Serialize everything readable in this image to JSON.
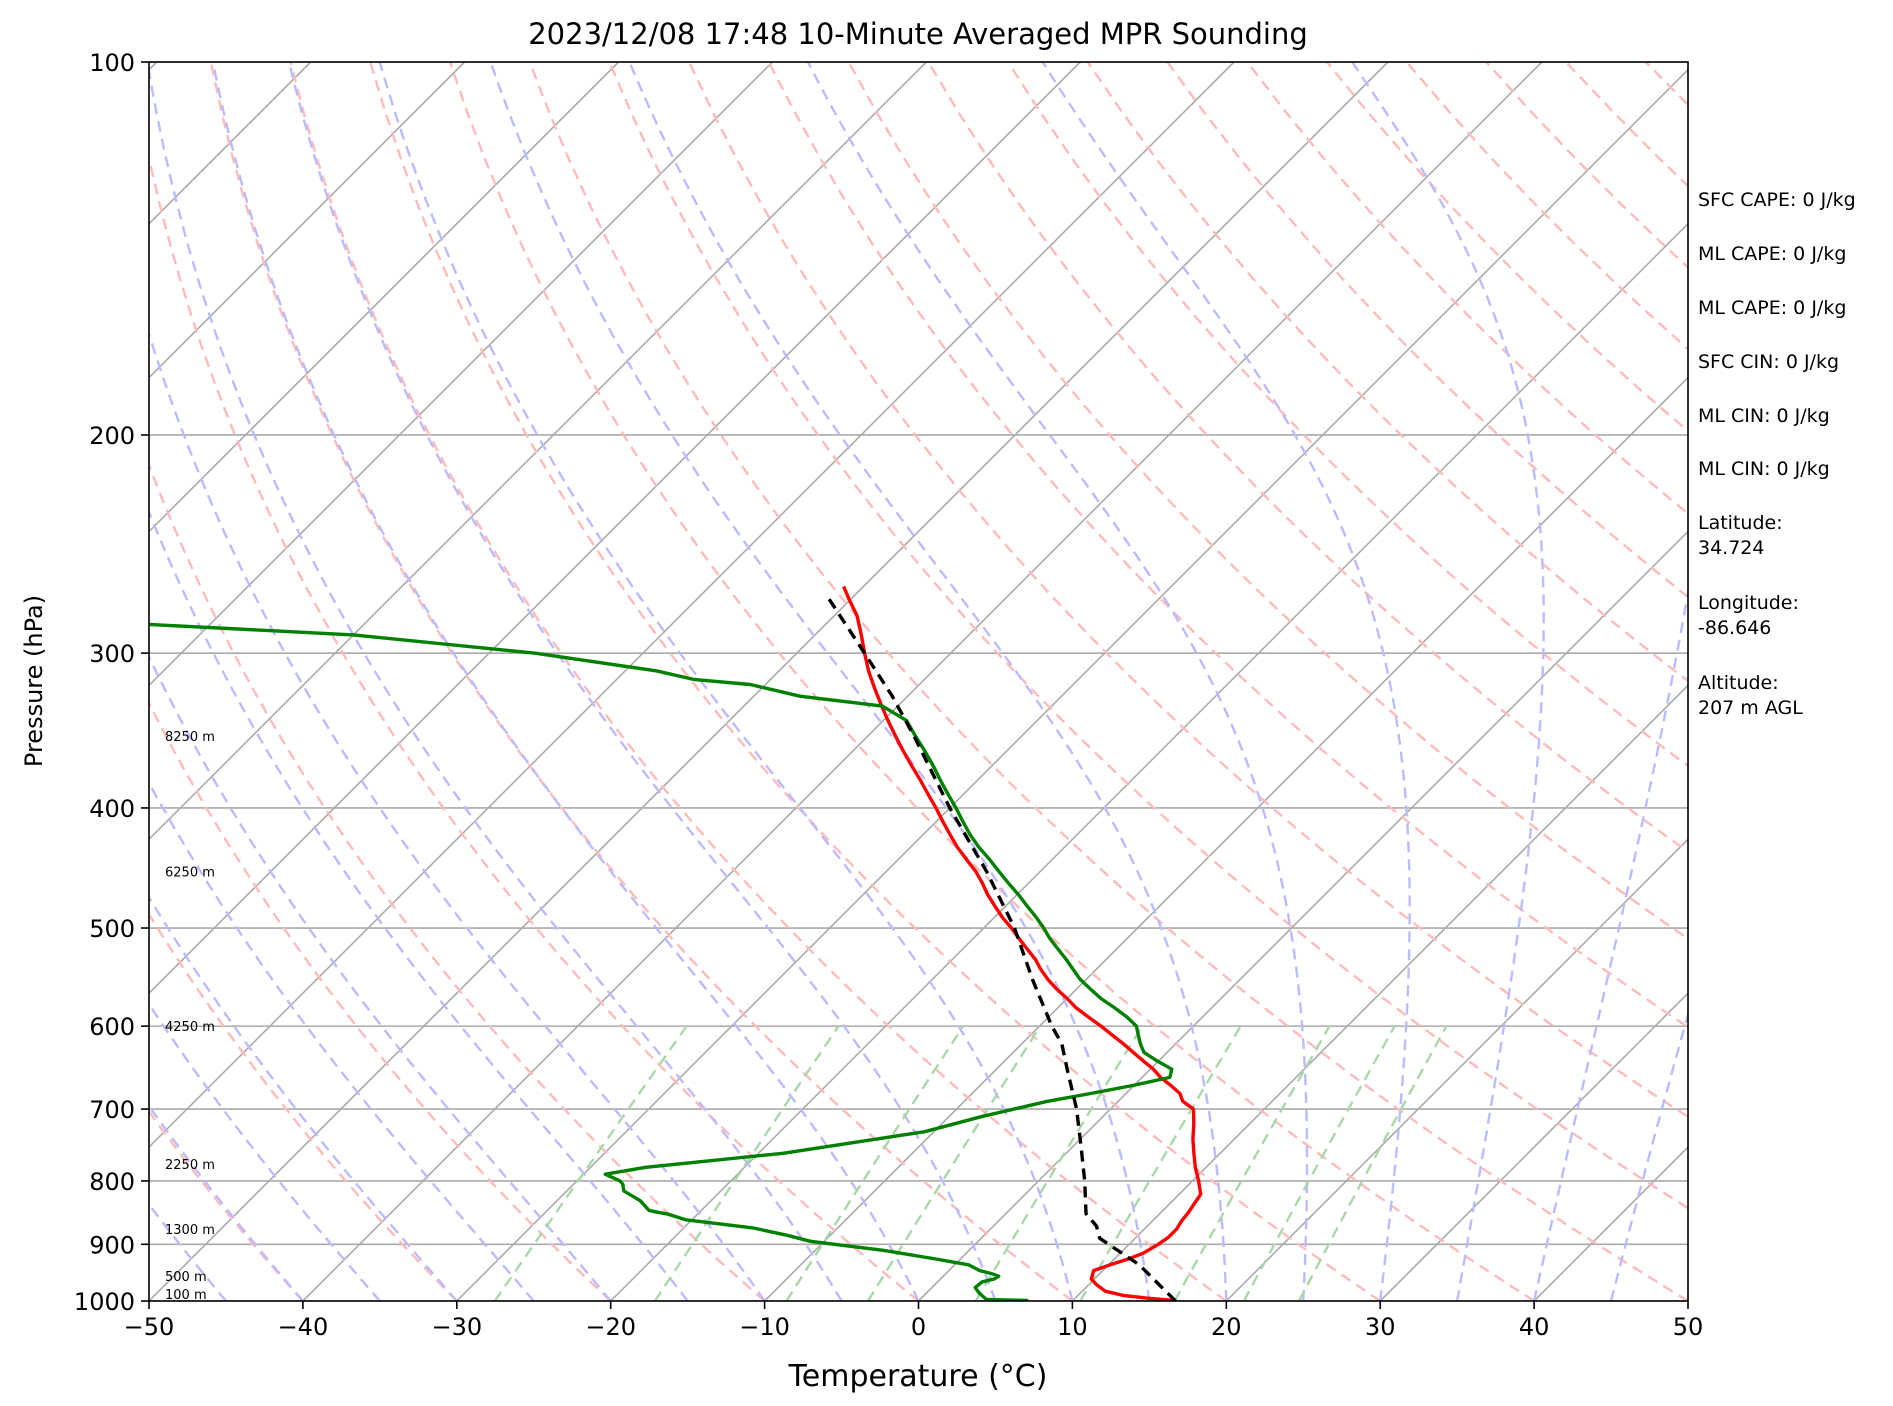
{
  "chart_data": {
    "type": "line",
    "subtype": "skew-t log-p sounding",
    "title": "2023/12/08 17:48 10-Minute Averaged MPR Sounding",
    "xlabel": "Temperature (°C)",
    "ylabel": "Pressure (hPa)",
    "xlim": [
      -50,
      50
    ],
    "ylim": [
      1000,
      100
    ],
    "y_scale": "log",
    "x_ticks": [
      -50,
      -40,
      -30,
      -20,
      -10,
      0,
      10,
      20,
      30,
      40,
      50
    ],
    "x_tick_labels": [
      "−50",
      "−40",
      "−30",
      "−20",
      "−10",
      "0",
      "10",
      "20",
      "30",
      "40",
      "50"
    ],
    "y_ticks": [
      100,
      200,
      300,
      400,
      500,
      600,
      700,
      800,
      900,
      1000
    ],
    "y_tick_labels": [
      "100",
      "200",
      "300",
      "400",
      "500",
      "600",
      "700",
      "800",
      "900",
      "1000"
    ],
    "height_labels": [
      {
        "p": 350,
        "text": "8250 m"
      },
      {
        "p": 450,
        "text": "6250 m"
      },
      {
        "p": 600,
        "text": "4250 m"
      },
      {
        "p": 775,
        "text": "2250 m"
      },
      {
        "p": 875,
        "text": "1300 m"
      },
      {
        "p": 955,
        "text": "500 m"
      },
      {
        "p": 1000,
        "text": "100 m"
      }
    ],
    "series": [
      {
        "key": "temperature",
        "color": "#ff0000",
        "style": "solid",
        "points": [
          [
            16.6,
            999
          ],
          [
            14.8,
            995
          ],
          [
            13,
            990
          ],
          [
            11.5,
            982
          ],
          [
            10.5,
            970
          ],
          [
            9.8,
            960
          ],
          [
            9.4,
            945
          ],
          [
            10.1,
            935
          ],
          [
            10.9,
            925
          ],
          [
            11.5,
            915
          ],
          [
            11.9,
            900
          ],
          [
            12.1,
            888
          ],
          [
            12.1,
            875
          ],
          [
            11.9,
            862
          ],
          [
            11.8,
            850
          ],
          [
            11.6,
            835
          ],
          [
            11.4,
            820
          ],
          [
            10.4,
            800
          ],
          [
            9.3,
            780
          ],
          [
            8.3,
            760
          ],
          [
            7.3,
            740
          ],
          [
            6.4,
            720
          ],
          [
            5.4,
            700
          ],
          [
            4.2,
            690
          ],
          [
            3.5,
            680
          ],
          [
            2.4,
            670
          ],
          [
            1.2,
            660
          ],
          [
            0.2,
            650
          ],
          [
            -1.0,
            640
          ],
          [
            -2.2,
            630
          ],
          [
            -3.4,
            620
          ],
          [
            -4.7,
            610
          ],
          [
            -6.0,
            600
          ],
          [
            -7.4,
            590
          ],
          [
            -8.8,
            580
          ],
          [
            -10.0,
            570
          ],
          [
            -11.3,
            560
          ],
          [
            -12.5,
            550
          ],
          [
            -13.6,
            540
          ],
          [
            -14.6,
            530
          ],
          [
            -15.8,
            520
          ],
          [
            -17.0,
            510
          ],
          [
            -18.2,
            500
          ],
          [
            -19.5,
            490
          ],
          [
            -20.7,
            480
          ],
          [
            -21.9,
            470
          ],
          [
            -23.0,
            460
          ],
          [
            -24.2,
            450
          ],
          [
            -25.6,
            440
          ],
          [
            -27.0,
            430
          ],
          [
            -28.3,
            420
          ],
          [
            -29.6,
            410
          ],
          [
            -30.9,
            400
          ],
          [
            -32.3,
            390
          ],
          [
            -33.7,
            380
          ],
          [
            -35.2,
            370
          ],
          [
            -36.7,
            360
          ],
          [
            -38.2,
            350
          ],
          [
            -39.7,
            340
          ],
          [
            -41.2,
            330
          ],
          [
            -42.7,
            320
          ],
          [
            -44.2,
            310
          ],
          [
            -45.6,
            300
          ],
          [
            -47.0,
            290
          ],
          [
            -48.5,
            280
          ],
          [
            -50.0,
            272
          ],
          [
            -51.3,
            265
          ]
        ]
      },
      {
        "key": "dewpoint",
        "color": "#008000",
        "style": "solid",
        "points": [
          [
            7.1,
            999
          ],
          [
            4.3,
            997
          ],
          [
            3.4,
            985
          ],
          [
            2.8,
            975
          ],
          [
            2.9,
            965
          ],
          [
            3.5,
            960
          ],
          [
            3.6,
            955
          ],
          [
            2.9,
            950
          ],
          [
            2.0,
            945
          ],
          [
            0.9,
            935
          ],
          [
            -1.6,
            925
          ],
          [
            -5.6,
            910
          ],
          [
            -10.9,
            895
          ],
          [
            -12.8,
            885
          ],
          [
            -15.5,
            873
          ],
          [
            -20.4,
            860
          ],
          [
            -21.9,
            851
          ],
          [
            -22.7,
            848
          ],
          [
            -23.4,
            845
          ],
          [
            -24.6,
            830
          ],
          [
            -26.3,
            815
          ],
          [
            -26.8,
            805
          ],
          [
            -27.2,
            800
          ],
          [
            -28.6,
            790
          ],
          [
            -26.4,
            780
          ],
          [
            -18.4,
            760
          ],
          [
            -10.6,
            730
          ],
          [
            -7.9,
            710
          ],
          [
            -4.6,
            690
          ],
          [
            -2.3,
            680
          ],
          [
            -0.1,
            670
          ],
          [
            1.8,
            660
          ],
          [
            1.4,
            650
          ],
          [
            -0.1,
            640
          ],
          [
            -1.5,
            630
          ],
          [
            -2.3,
            620
          ],
          [
            -3.0,
            610
          ],
          [
            -3.7,
            600
          ],
          [
            -4.9,
            590
          ],
          [
            -6.3,
            580
          ],
          [
            -7.8,
            570
          ],
          [
            -9.1,
            560
          ],
          [
            -10.4,
            550
          ],
          [
            -11.5,
            540
          ],
          [
            -12.6,
            530
          ],
          [
            -13.8,
            520
          ],
          [
            -15.0,
            510
          ],
          [
            -16.1,
            500
          ],
          [
            -17.3,
            490
          ],
          [
            -18.6,
            480
          ],
          [
            -19.9,
            470
          ],
          [
            -21.3,
            460
          ],
          [
            -22.7,
            450
          ],
          [
            -24.1,
            440
          ],
          [
            -25.6,
            430
          ],
          [
            -27.0,
            420
          ],
          [
            -28.3,
            410
          ],
          [
            -29.6,
            400
          ],
          [
            -31.0,
            390
          ],
          [
            -32.4,
            380
          ],
          [
            -33.8,
            370
          ],
          [
            -35.3,
            360
          ],
          [
            -36.9,
            350
          ],
          [
            -38.5,
            340
          ],
          [
            -41.0,
            331
          ],
          [
            -47.0,
            325
          ],
          [
            -51.0,
            318
          ],
          [
            -55.0,
            315
          ],
          [
            -58.0,
            310
          ],
          [
            -67.0,
            300
          ],
          [
            -80.0,
            290
          ],
          [
            -95.0,
            284
          ]
        ]
      },
      {
        "key": "parcel",
        "color": "#000000",
        "style": "dashed",
        "points": [
          [
            16.7,
            1000
          ],
          [
            12.0,
            935
          ],
          [
            7.7,
            890
          ],
          [
            7.2,
            880
          ],
          [
            6.7,
            870
          ],
          [
            5.2,
            850
          ],
          [
            3.0,
            800
          ],
          [
            0.5,
            750
          ],
          [
            -2.2,
            700
          ],
          [
            -5.4,
            650
          ],
          [
            -7.4,
            620
          ],
          [
            -9.2,
            600
          ],
          [
            -13.5,
            550
          ],
          [
            -18.0,
            500
          ],
          [
            -23.5,
            450
          ],
          [
            -30.0,
            400
          ],
          [
            -37.0,
            350
          ],
          [
            -41.0,
            325
          ],
          [
            -45.6,
            300
          ],
          [
            -51.7,
            270
          ]
        ]
      }
    ],
    "reference_lines": {
      "isotherms": {
        "color": "#aaaaaa",
        "style": "solid",
        "values": [
          -140,
          -130,
          -120,
          -110,
          -100,
          -90,
          -80,
          -70,
          -60,
          -50,
          -40,
          -30,
          -20,
          -10,
          0,
          10,
          20,
          30,
          40,
          50
        ]
      },
      "dry_adiabats": {
        "color": "#ffbbbb",
        "style": "dashed",
        "theta_c": [
          -40,
          -30,
          -20,
          -10,
          0,
          10,
          20,
          30,
          40,
          50,
          60,
          70,
          80,
          90,
          100,
          110,
          120,
          130,
          140,
          150,
          160,
          170,
          180,
          190,
          200,
          210,
          220
        ]
      },
      "moist_adiabats": {
        "color": "#bbbbff",
        "style": "dashed",
        "t0_c": [
          -45,
          -40,
          -35,
          -30,
          -25,
          -20,
          -15,
          -10,
          -5,
          0,
          5,
          10,
          15,
          20,
          25,
          30,
          35,
          40,
          45
        ]
      },
      "mixing_ratio_lines": {
        "color": "#a8d8a8",
        "style": "dashed",
        "w_gkg": [
          0.4,
          1,
          2,
          3,
          5,
          8,
          12,
          16,
          20
        ]
      }
    }
  },
  "info_panel": [
    "SFC CAPE: 0 J/kg",
    "ML CAPE: 0 J/kg",
    "ML CAPE: 0 J/kg",
    "SFC CIN: 0 J/kg",
    "ML CIN: 0 J/kg",
    "ML CIN: 0 J/kg",
    "Latitude:\n34.724",
    "Longitude:\n-86.646",
    "Altitude:\n207 m AGL"
  ]
}
